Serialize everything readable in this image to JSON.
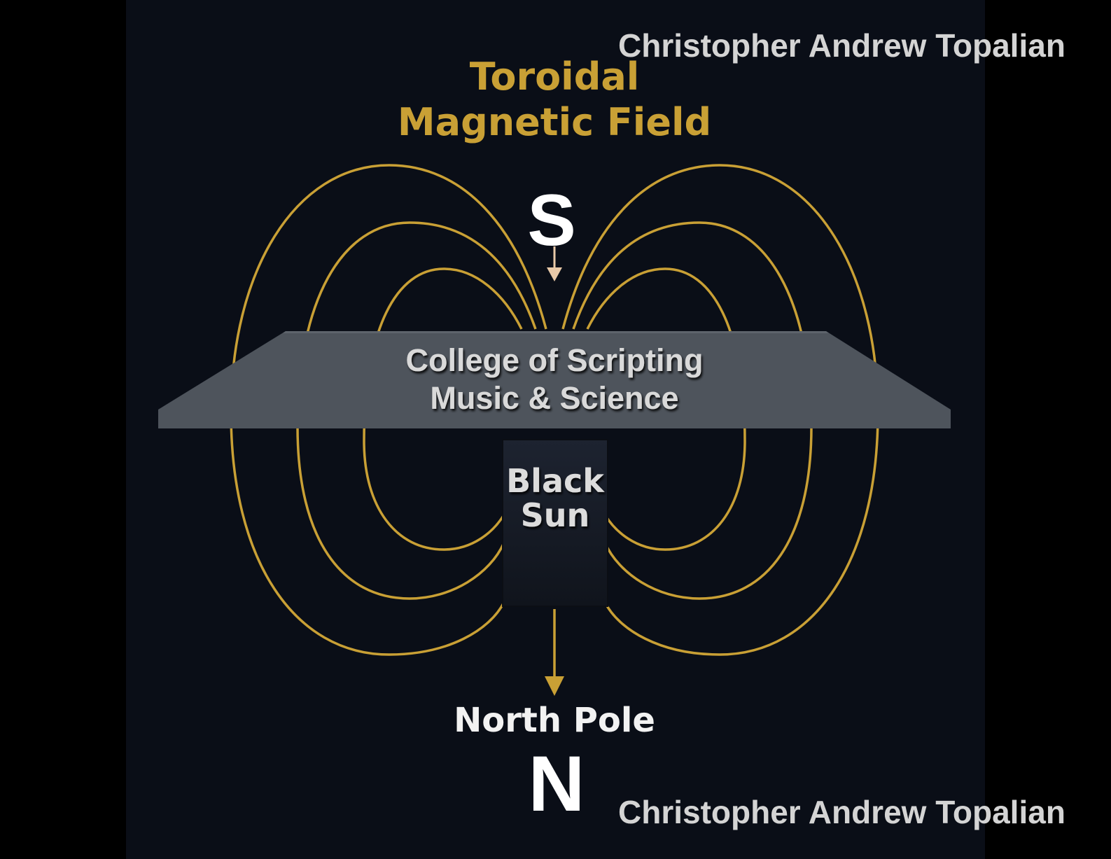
{
  "diagram": {
    "title_line1": "Toroidal",
    "title_line2": "Magnetic Field",
    "south_label": "S",
    "band_line1": "College of Scripting",
    "band_line2": "Music & Science",
    "core_line1": "Black",
    "core_line2": "Sun",
    "north_caption": "North Pole",
    "north_label": "N"
  },
  "watermark": {
    "top": "Christopher Andrew Topalian",
    "bottom": "Christopher Andrew Topalian"
  },
  "colors": {
    "background": "#0a0e17",
    "field_lines": "#c9a035",
    "band": "#4e545c",
    "core": "#151a24",
    "text_white": "#f2f2f2"
  }
}
